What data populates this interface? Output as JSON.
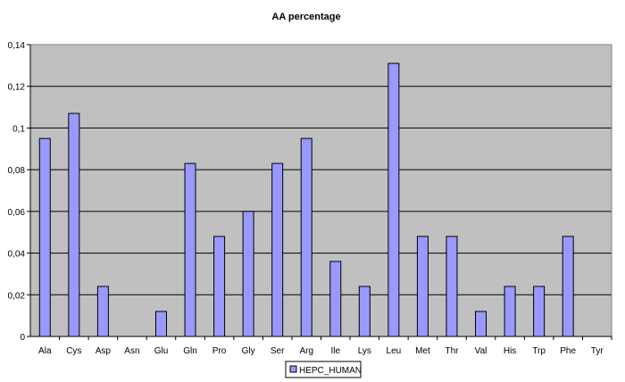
{
  "chart_data": {
    "type": "bar",
    "title": "AA percentage",
    "xlabel": "",
    "ylabel": "",
    "categories": [
      "Ala",
      "Cys",
      "Asp",
      "Asn",
      "Glu",
      "Gln",
      "Pro",
      "Gly",
      "Ser",
      "Arg",
      "Ile",
      "Lys",
      "Leu",
      "Met",
      "Thr",
      "Val",
      "His",
      "Trp",
      "Phe",
      "Tyr"
    ],
    "series": [
      {
        "name": "HEPC_HUMAN",
        "color": "#9999ff",
        "values": [
          0.095,
          0.107,
          0.024,
          0,
          0.012,
          0.083,
          0.048,
          0.06,
          0.083,
          0.095,
          0.036,
          0.024,
          0.131,
          0.048,
          0.048,
          0.012,
          0.024,
          0.024,
          0.048,
          0
        ]
      }
    ],
    "ylim": [
      0,
      0.14
    ],
    "yticks": [
      "0",
      "0,02",
      "0,04",
      "0,06",
      "0,08",
      "0,1",
      "0,12",
      "0,14"
    ],
    "grid": true,
    "plot_background": "#c0c0c0",
    "legend_position": "bottom-center"
  }
}
